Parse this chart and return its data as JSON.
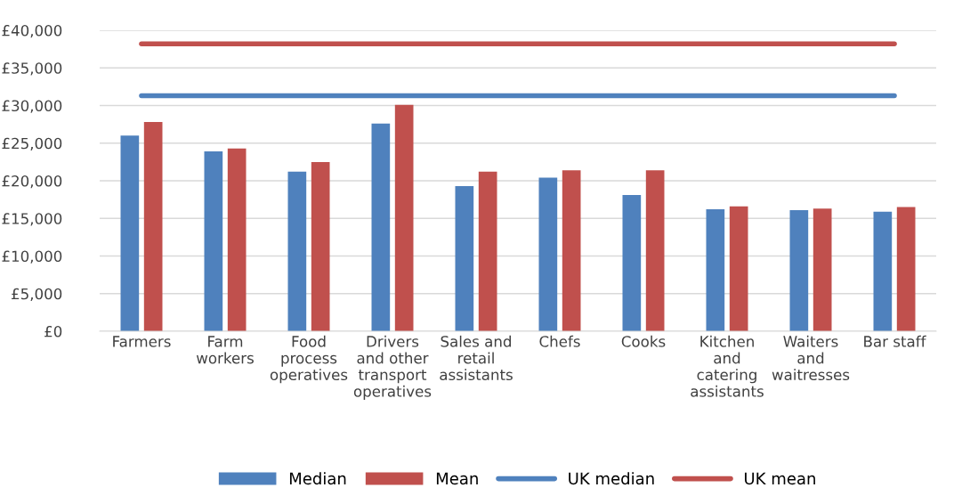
{
  "chart_data": {
    "type": "bar",
    "categories": [
      "Farmers",
      "Farm\nworkers",
      "Food\nprocess\noperatives",
      "Drivers\nand other\ntransport\noperatives",
      "Sales and\nretail\nassistants",
      "Chefs",
      "Cooks",
      "Kitchen\nand\ncatering\nassistants",
      "Waiters\nand\nwaitresses",
      "Bar staff"
    ],
    "series": [
      {
        "name": "Median",
        "color": "#4f81bd",
        "values": [
          26000,
          23900,
          21200,
          27600,
          19300,
          20400,
          18100,
          16200,
          16100,
          15900
        ]
      },
      {
        "name": "Mean",
        "color": "#c0504d",
        "values": [
          27800,
          24300,
          22500,
          30100,
          21200,
          21400,
          21400,
          16600,
          16300,
          16500
        ]
      },
      {
        "name": "UK median",
        "type": "line",
        "color": "#4f81bd",
        "values": [
          31300,
          31300,
          31300,
          31300,
          31300,
          31300,
          31300,
          31300,
          31300,
          31300
        ]
      },
      {
        "name": "UK mean",
        "type": "line",
        "color": "#c0504d",
        "values": [
          38200,
          38200,
          38200,
          38200,
          38200,
          38200,
          38200,
          38200,
          38200,
          38200
        ]
      }
    ],
    "ylim": [
      0,
      40000
    ],
    "yticks": [
      {
        "value": 0,
        "label": "£0"
      },
      {
        "value": 5000,
        "label": "£5,000"
      },
      {
        "value": 10000,
        "label": "£10,000"
      },
      {
        "value": 15000,
        "label": "£15,000"
      },
      {
        "value": 20000,
        "label": "£20,000"
      },
      {
        "value": 25000,
        "label": "£25,000"
      },
      {
        "value": 30000,
        "label": "£30,000"
      },
      {
        "value": 35000,
        "label": "£35,000"
      },
      {
        "value": 40000,
        "label": "£40,000"
      }
    ],
    "grid": "y",
    "legend": "bottom",
    "marker": "none"
  }
}
